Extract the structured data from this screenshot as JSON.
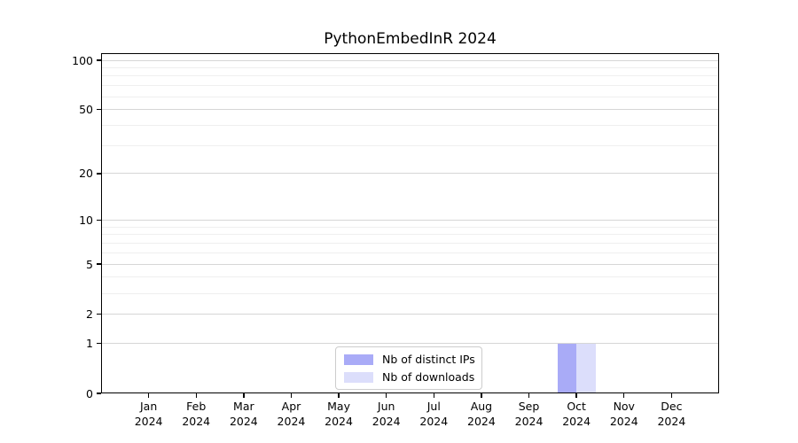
{
  "title": "PythonEmbedInR 2024",
  "chart_data": {
    "type": "bar",
    "title": "PythonEmbedInR 2024",
    "categories": [
      "Jan",
      "Feb",
      "Mar",
      "Apr",
      "May",
      "Jun",
      "Jul",
      "Aug",
      "Sep",
      "Oct",
      "Nov",
      "Dec"
    ],
    "year": "2024",
    "series": [
      {
        "name": "Nb of distinct IPs",
        "color": "#a9abf7",
        "values": [
          0,
          0,
          0,
          0,
          0,
          0,
          0,
          0,
          0,
          1,
          0,
          0
        ]
      },
      {
        "name": "Nb of downloads",
        "color": "#dcdefb",
        "values": [
          0,
          0,
          0,
          0,
          0,
          0,
          0,
          0,
          0,
          1,
          0,
          0
        ]
      }
    ],
    "yscale": "log1p",
    "ylim": [
      0,
      110
    ],
    "y_tick_values": [
      0,
      1,
      2,
      5,
      10,
      20,
      50,
      100
    ],
    "y_tick_labels": [
      "0",
      "1",
      "2",
      "5",
      "10",
      "20",
      "50",
      "100"
    ],
    "y_minor_gridline_values": [
      3,
      4,
      6,
      7,
      8,
      9,
      30,
      40,
      60,
      70,
      80,
      90
    ],
    "grid": "horizontal",
    "legend_position": "lower center"
  },
  "legend": {
    "items": [
      {
        "label": "Nb of distinct IPs",
        "color": "#a9abf7"
      },
      {
        "label": "Nb of downloads",
        "color": "#dcdefb"
      }
    ]
  },
  "colors": {
    "major_grid": "#d6d6d6",
    "minor_grid": "#efefef",
    "spine": "#000000",
    "background": "#ffffff"
  }
}
